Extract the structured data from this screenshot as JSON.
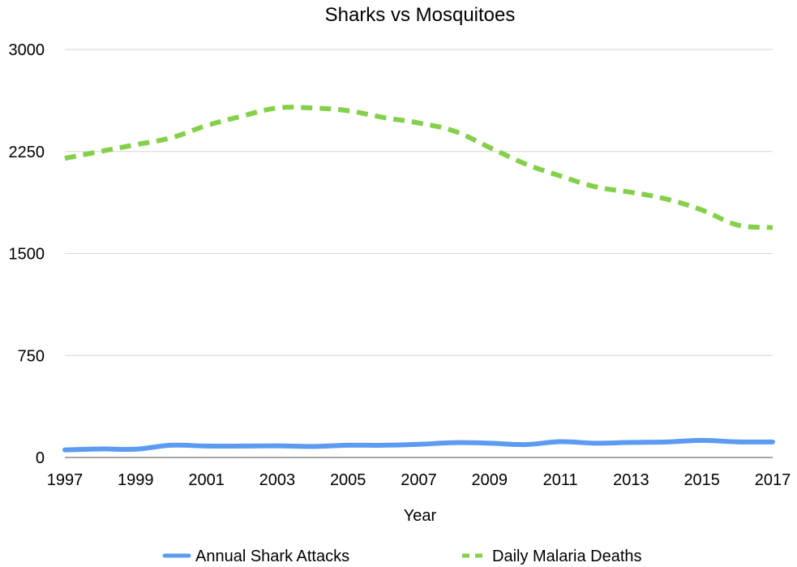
{
  "chart_data": {
    "type": "line",
    "title": "Sharks vs Mosquitoes",
    "xlabel": "Year",
    "ylabel": "",
    "x": [
      1997,
      1998,
      1999,
      2000,
      2001,
      2002,
      2003,
      2004,
      2005,
      2006,
      2007,
      2008,
      2009,
      2010,
      2011,
      2012,
      2013,
      2014,
      2015,
      2016,
      2017
    ],
    "x_tick_labels": [
      "1997",
      "1999",
      "2001",
      "2003",
      "2005",
      "2007",
      "2009",
      "2011",
      "2013",
      "2015",
      "2017"
    ],
    "y_tick_labels": [
      "0",
      "750",
      "1500",
      "2250",
      "3000"
    ],
    "y_ticks": [
      0,
      750,
      1500,
      2250,
      3000
    ],
    "ylim": [
      0,
      3000
    ],
    "xlim": [
      1997,
      2017
    ],
    "grid": true,
    "legend_position": "bottom",
    "series": [
      {
        "name": "Annual Shark Attacks",
        "color": "#5b9cf2",
        "dash": "solid",
        "values": [
          56,
          63,
          61,
          90,
          84,
          84,
          86,
          81,
          90,
          90,
          97,
          109,
          105,
          95,
          116,
          105,
          111,
          114,
          126,
          115,
          114
        ]
      },
      {
        "name": "Daily Malaria Deaths",
        "color": "#85d04a",
        "dash": "dashed",
        "values": [
          2200,
          2250,
          2300,
          2350,
          2440,
          2510,
          2570,
          2570,
          2550,
          2500,
          2460,
          2400,
          2280,
          2160,
          2070,
          1990,
          1950,
          1900,
          1820,
          1710,
          1690
        ]
      }
    ]
  }
}
